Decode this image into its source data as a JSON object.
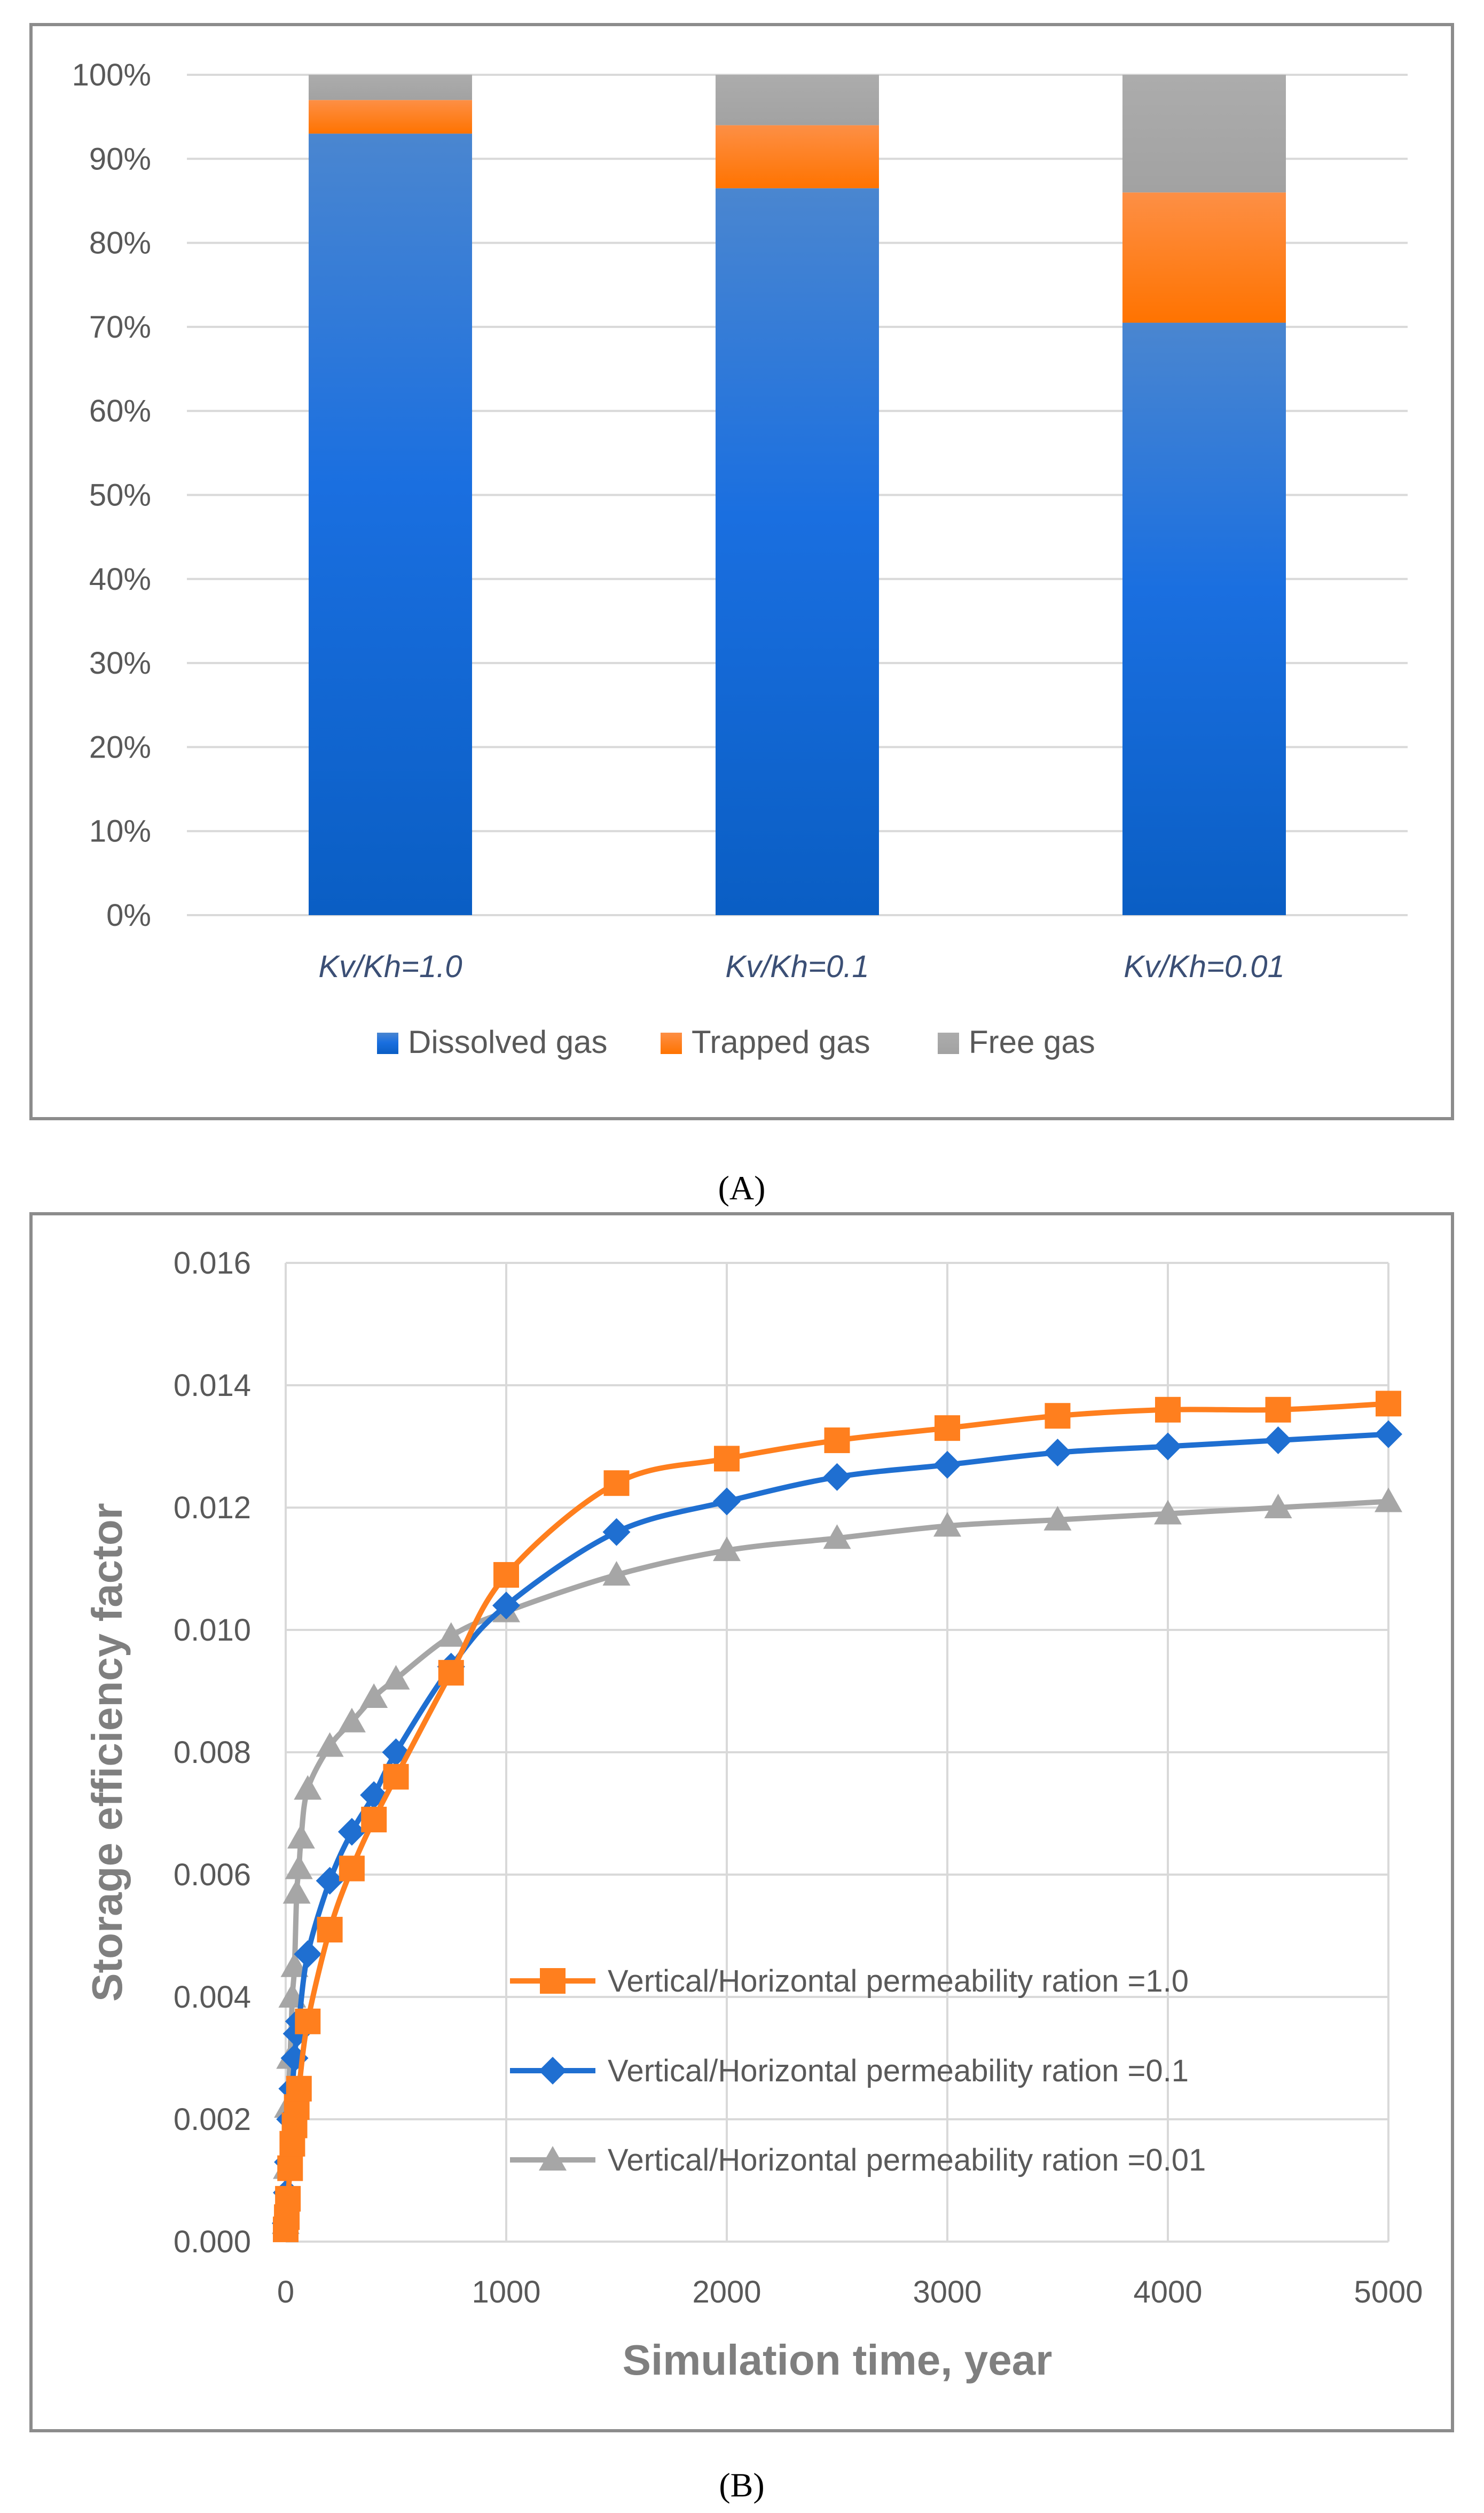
{
  "chart_data": [
    {
      "panel_label": "A",
      "type": "bar",
      "stacked": true,
      "percent": true,
      "categories": [
        "Kv/Kh=1.0",
        "Kv/Kh=0.1",
        "Kv/Kh=0.01"
      ],
      "series": [
        {
          "name": "Dissolved gas",
          "color": "#1f6fd1",
          "values": [
            93,
            86.5,
            70.5
          ]
        },
        {
          "name": "Trapped gas",
          "color": "#ff7f1e",
          "values": [
            4,
            7.5,
            15.5
          ]
        },
        {
          "name": "Free gas",
          "color": "#a6a6a6",
          "values": [
            3,
            6,
            14
          ]
        }
      ],
      "ylim": [
        0,
        100
      ],
      "y_ticks": [
        "0%",
        "10%",
        "20%",
        "30%",
        "40%",
        "50%",
        "60%",
        "70%",
        "80%",
        "90%",
        "100%"
      ],
      "legend": "bottom",
      "grid": true
    },
    {
      "panel_label": "B",
      "type": "line",
      "xlabel": "Simulation time, year",
      "ylabel": "Storage efficiency factor",
      "xlim": [
        0,
        5000
      ],
      "ylim": [
        0,
        0.016
      ],
      "x_ticks": [
        "0",
        "1000",
        "2000",
        "3000",
        "4000",
        "5000"
      ],
      "y_ticks": [
        "0.000",
        "0.002",
        "0.004",
        "0.006",
        "0.008",
        "0.010",
        "0.012",
        "0.014",
        "0.016"
      ],
      "legend": "inside-bottom-right",
      "grid": true,
      "series": [
        {
          "name": "Vertical/Horizontal permeability ration =1.0",
          "color": "#ff7f1e",
          "marker": "square",
          "points": [
            [
              0,
              0.0002
            ],
            [
              5,
              0.0004
            ],
            [
              10,
              0.0007
            ],
            [
              20,
              0.0012
            ],
            [
              30,
              0.0016
            ],
            [
              40,
              0.0019
            ],
            [
              50,
              0.0022
            ],
            [
              60,
              0.0025
            ],
            [
              100,
              0.0036
            ],
            [
              200,
              0.0051
            ],
            [
              300,
              0.0061
            ],
            [
              400,
              0.0069
            ],
            [
              500,
              0.0076
            ],
            [
              750,
              0.0093
            ],
            [
              1000,
              0.0109
            ],
            [
              1500,
              0.0124
            ],
            [
              2000,
              0.0128
            ],
            [
              2500,
              0.0131
            ],
            [
              3000,
              0.0133
            ],
            [
              3500,
              0.0135
            ],
            [
              4000,
              0.0136
            ],
            [
              4500,
              0.0136
            ],
            [
              5000,
              0.0137
            ]
          ]
        },
        {
          "name": "Vertical/Horizontal permeability ration =0.1",
          "color": "#1f6fd1",
          "marker": "diamond",
          "points": [
            [
              0,
              0.0003
            ],
            [
              5,
              0.0008
            ],
            [
              10,
              0.0013
            ],
            [
              20,
              0.002
            ],
            [
              30,
              0.0025
            ],
            [
              40,
              0.003
            ],
            [
              50,
              0.0034
            ],
            [
              60,
              0.0036
            ],
            [
              100,
              0.0047
            ],
            [
              200,
              0.0059
            ],
            [
              300,
              0.0067
            ],
            [
              400,
              0.0073
            ],
            [
              500,
              0.008
            ],
            [
              750,
              0.0094
            ],
            [
              1000,
              0.0104
            ],
            [
              1500,
              0.0116
            ],
            [
              2000,
              0.0121
            ],
            [
              2500,
              0.0125
            ],
            [
              3000,
              0.0127
            ],
            [
              3500,
              0.0129
            ],
            [
              4000,
              0.013
            ],
            [
              4500,
              0.0131
            ],
            [
              5000,
              0.0132
            ]
          ]
        },
        {
          "name": "Vertical/Horizontal permeability ration =0.01",
          "color": "#a6a6a6",
          "marker": "triangle",
          "points": [
            [
              0,
              0.0003
            ],
            [
              5,
              0.0012
            ],
            [
              10,
              0.0022
            ],
            [
              20,
              0.003
            ],
            [
              30,
              0.004
            ],
            [
              40,
              0.0045
            ],
            [
              50,
              0.0057
            ],
            [
              60,
              0.0061
            ],
            [
              70,
              0.0066
            ],
            [
              100,
              0.0074
            ],
            [
              200,
              0.0081
            ],
            [
              300,
              0.0085
            ],
            [
              400,
              0.0089
            ],
            [
              500,
              0.0092
            ],
            [
              750,
              0.0099
            ],
            [
              1000,
              0.0103
            ],
            [
              1500,
              0.0109
            ],
            [
              2000,
              0.0113
            ],
            [
              2500,
              0.0115
            ],
            [
              3000,
              0.0117
            ],
            [
              3500,
              0.0118
            ],
            [
              4000,
              0.0119
            ],
            [
              4500,
              0.012
            ],
            [
              5000,
              0.0121
            ]
          ]
        }
      ]
    }
  ],
  "captions": {
    "a": "(A)",
    "b": "(B)"
  }
}
